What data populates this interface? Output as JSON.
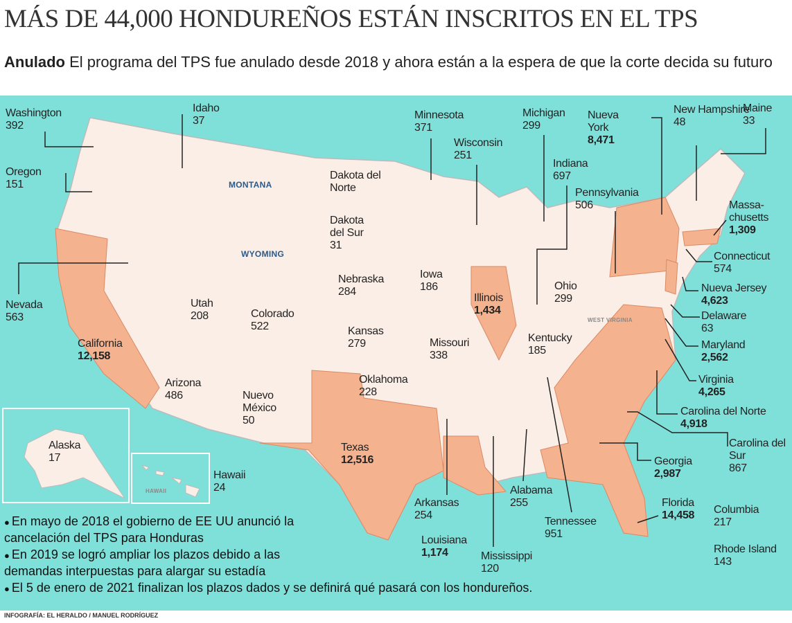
{
  "title": "MÁS DE 44,000 HONDUREÑOS ESTÁN INSCRITOS EN EL TPS",
  "subtitle": {
    "lead": "Anulado",
    "text": "El programa del TPS fue anulado desde 2018 y ahora están a la espera de que la corte decida su futuro"
  },
  "map_labels": [
    "MONTANA",
    "WYOMING",
    "WEST VIRGINIA",
    "HAWAII"
  ],
  "states": [
    {
      "name": "Washington",
      "count": "392"
    },
    {
      "name": "Idaho",
      "count": "37"
    },
    {
      "name": "Minnesota",
      "count": "371"
    },
    {
      "name": "Michigan",
      "count": "299"
    },
    {
      "name": "Nueva York",
      "count": "8,471",
      "highlight": true
    },
    {
      "name": "New Hampshire",
      "count": "48"
    },
    {
      "name": "Maine",
      "count": "33"
    },
    {
      "name": "Wisconsin",
      "count": "251"
    },
    {
      "name": "Oregon",
      "count": "151"
    },
    {
      "name": "Indiana",
      "count": "697"
    },
    {
      "name": "Dakota del Norte"
    },
    {
      "name": "Pennsylvania",
      "count": "506"
    },
    {
      "name": "Massa-chusetts",
      "count": "1,309",
      "highlight": true
    },
    {
      "name": "Dakota del Sur",
      "count": "31"
    },
    {
      "name": "Connecticut",
      "count": "574"
    },
    {
      "name": "Nevada",
      "count": "563"
    },
    {
      "name": "Iowa",
      "count": "186"
    },
    {
      "name": "Nebraska",
      "count": "284"
    },
    {
      "name": "Illinois",
      "count": "1,434",
      "highlight": true
    },
    {
      "name": "Ohio",
      "count": "299"
    },
    {
      "name": "Nueva Jersey",
      "count": "4,623",
      "highlight": true
    },
    {
      "name": "Utah",
      "count": "208"
    },
    {
      "name": "Colorado",
      "count": "522"
    },
    {
      "name": "Delaware",
      "count": "63"
    },
    {
      "name": "Kansas",
      "count": "279"
    },
    {
      "name": "California",
      "count": "12,158",
      "highlight": true
    },
    {
      "name": "Kentucky",
      "count": "185"
    },
    {
      "name": "Missouri",
      "count": "338"
    },
    {
      "name": "Maryland",
      "count": "2,562",
      "highlight": true
    },
    {
      "name": "Arizona",
      "count": "486"
    },
    {
      "name": "Oklahoma",
      "count": "228"
    },
    {
      "name": "Virginia",
      "count": "4,265",
      "highlight": true
    },
    {
      "name": "Nuevo México",
      "count": "50"
    },
    {
      "name": "Carolina del Norte",
      "count": "4,918",
      "highlight": true
    },
    {
      "name": "Alaska",
      "count": "17"
    },
    {
      "name": "Carolina del Sur",
      "count": "867"
    },
    {
      "name": "Texas",
      "count": "12,516",
      "highlight": true
    },
    {
      "name": "Georgia",
      "count": "2,987",
      "highlight": true
    },
    {
      "name": "Hawaii",
      "count": "24"
    },
    {
      "name": "Alabama",
      "count": "255"
    },
    {
      "name": "Arkansas",
      "count": "254"
    },
    {
      "name": "Florida",
      "count": "14,458",
      "highlight": true
    },
    {
      "name": "Columbia",
      "count": "217"
    },
    {
      "name": "Tennessee",
      "count": "951"
    },
    {
      "name": "Louisiana",
      "count": "1,174",
      "highlight": true
    },
    {
      "name": "Mississippi",
      "count": "120"
    },
    {
      "name": "Rhode Island",
      "count": "143"
    }
  ],
  "notes": [
    "En mayo de 2018 el gobierno de EE UU anunció la cancelación del TPS para Honduras",
    "En 2019 se logró ampliar los plazos debido a las demandas interpuestas para alargar su estadía",
    "El 5 de enero de 2021 finalizan los plazos dados y se definirá qué pasará con los hondureños."
  ],
  "credit": "INFOGRAFÍA: EL HERALDO / MANUEL RODRÍGUEZ"
}
